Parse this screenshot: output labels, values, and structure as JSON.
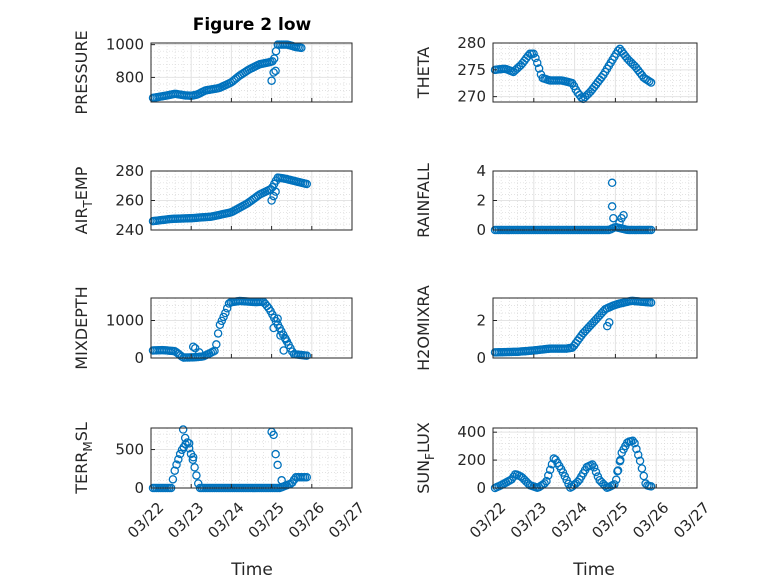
{
  "figure": {
    "title": "Figure 2 low",
    "xlabel": "Time",
    "marker_color": "#0072BD",
    "date_ticks": [
      "03/22",
      "03/23",
      "03/24",
      "03/25",
      "03/26",
      "03/27"
    ]
  },
  "chart_data": [
    {
      "type": "scatter",
      "ylabel": "PRESSURE",
      "ylabel_main": "PRESSURE",
      "ylim": [
        650,
        1010
      ],
      "yticks": [
        800,
        1000
      ],
      "x_range_days": [
        "03/22",
        "03/27"
      ],
      "anchors": [
        [
          0.05,
          675
        ],
        [
          0.4,
          690
        ],
        [
          0.6,
          700
        ],
        [
          0.85,
          690
        ],
        [
          1.0,
          688
        ],
        [
          1.15,
          695
        ],
        [
          1.35,
          720
        ],
        [
          1.7,
          735
        ],
        [
          2.0,
          770
        ],
        [
          2.2,
          810
        ],
        [
          2.45,
          850
        ],
        [
          2.7,
          880
        ],
        [
          2.9,
          890
        ],
        [
          3.05,
          900
        ],
        [
          3.15,
          1000
        ],
        [
          3.4,
          1000
        ],
        [
          3.6,
          985
        ],
        [
          3.75,
          980
        ]
      ],
      "extras": [
        [
          3.0,
          780
        ],
        [
          3.05,
          830
        ],
        [
          3.1,
          840
        ]
      ],
      "y_gridlines": true
    },
    {
      "type": "scatter",
      "ylabel": "THETA",
      "ylabel_main": "THETA",
      "ylim": [
        269,
        280
      ],
      "yticks": [
        270,
        275,
        280
      ],
      "anchors": [
        [
          0.05,
          275
        ],
        [
          0.3,
          275.2
        ],
        [
          0.5,
          274.6
        ],
        [
          0.7,
          276
        ],
        [
          0.9,
          278
        ],
        [
          1.0,
          278
        ],
        [
          1.1,
          276
        ],
        [
          1.2,
          273.5
        ],
        [
          1.4,
          273
        ],
        [
          1.7,
          273
        ],
        [
          1.95,
          272.5
        ],
        [
          2.05,
          271
        ],
        [
          2.2,
          269.5
        ],
        [
          2.4,
          271
        ],
        [
          2.7,
          274
        ],
        [
          2.9,
          276.5
        ],
        [
          3.1,
          279
        ],
        [
          3.3,
          277
        ],
        [
          3.5,
          275.5
        ],
        [
          3.7,
          273.5
        ],
        [
          3.9,
          272.5
        ]
      ],
      "extras": [],
      "y_gridlines": true
    },
    {
      "type": "scatter",
      "ylabel": "AIR_TEMP",
      "ylabel_main": "AIR",
      "ylabel_sub": "T",
      "ylabel_rest": "EMP",
      "ylim": [
        240,
        280
      ],
      "yticks": [
        240,
        260,
        280
      ],
      "anchors": [
        [
          0.05,
          246
        ],
        [
          0.5,
          247.5
        ],
        [
          1.0,
          248
        ],
        [
          1.5,
          249
        ],
        [
          2.0,
          252
        ],
        [
          2.4,
          258
        ],
        [
          2.7,
          264
        ],
        [
          3.0,
          268
        ],
        [
          3.15,
          275.5
        ],
        [
          3.3,
          275
        ],
        [
          3.6,
          273
        ],
        [
          3.9,
          271
        ]
      ],
      "extras": [
        [
          3.0,
          260
        ],
        [
          3.05,
          263
        ],
        [
          3.1,
          266
        ]
      ],
      "y_gridlines": true
    },
    {
      "type": "scatter",
      "ylabel": "RAINFALL",
      "ylabel_main": "RAINFALL",
      "ylim": [
        0,
        4
      ],
      "yticks": [
        0,
        2,
        4
      ],
      "anchors": [
        [
          0.05,
          0
        ],
        [
          2.85,
          0
        ],
        [
          3.0,
          0.2
        ],
        [
          3.3,
          0
        ],
        [
          3.9,
          0
        ]
      ],
      "extras": [
        [
          2.92,
          3.2
        ],
        [
          2.92,
          1.6
        ],
        [
          2.95,
          0.8
        ],
        [
          3.1,
          0.5
        ],
        [
          3.15,
          0.8
        ],
        [
          3.2,
          1.0
        ]
      ],
      "y_gridlines": true
    },
    {
      "type": "scatter",
      "ylabel": "MIXDEPTH",
      "ylabel_main": "MIXDEPTH",
      "ylim": [
        0,
        1600
      ],
      "yticks": [
        0,
        1000
      ],
      "anchors": [
        [
          0.05,
          200
        ],
        [
          0.3,
          210
        ],
        [
          0.6,
          180
        ],
        [
          0.8,
          10
        ],
        [
          1.1,
          20
        ],
        [
          1.3,
          40
        ],
        [
          1.45,
          120
        ],
        [
          1.6,
          200
        ],
        [
          1.7,
          850
        ],
        [
          1.85,
          1200
        ],
        [
          1.95,
          1480
        ],
        [
          2.2,
          1520
        ],
        [
          2.6,
          1490
        ],
        [
          2.8,
          1500
        ],
        [
          2.95,
          1300
        ],
        [
          3.1,
          1000
        ],
        [
          3.25,
          700
        ],
        [
          3.4,
          400
        ],
        [
          3.55,
          100
        ],
        [
          3.9,
          60
        ]
      ],
      "extras": [
        [
          1.05,
          300
        ],
        [
          1.1,
          260
        ],
        [
          1.2,
          150
        ],
        [
          3.05,
          800
        ],
        [
          3.15,
          1050
        ],
        [
          3.22,
          600
        ],
        [
          3.3,
          200
        ],
        [
          3.35,
          500
        ]
      ],
      "y_gridlines": true
    },
    {
      "type": "scatter",
      "ylabel": "H2OMIXRA",
      "ylabel_main": "H2OMIXRA",
      "ylim": [
        0,
        3.2
      ],
      "yticks": [
        0,
        2
      ],
      "anchors": [
        [
          0.05,
          0.3
        ],
        [
          0.6,
          0.33
        ],
        [
          1.0,
          0.4
        ],
        [
          1.4,
          0.5
        ],
        [
          1.8,
          0.5
        ],
        [
          1.95,
          0.55
        ],
        [
          2.2,
          1.3
        ],
        [
          2.5,
          2.0
        ],
        [
          2.75,
          2.6
        ],
        [
          2.95,
          2.8
        ],
        [
          3.1,
          2.9
        ],
        [
          3.4,
          3.05
        ],
        [
          3.9,
          2.95
        ]
      ],
      "extras": [
        [
          2.8,
          1.7
        ],
        [
          2.85,
          1.9
        ]
      ],
      "y_gridlines": true
    },
    {
      "type": "scatter",
      "ylabel": "TERR_MSL",
      "ylabel_main": "TERR",
      "ylabel_sub": "M",
      "ylabel_rest": "SL",
      "ylim": [
        0,
        780
      ],
      "yticks": [
        0,
        500
      ],
      "anchors": [
        [
          0.05,
          0
        ],
        [
          0.3,
          0
        ],
        [
          0.5,
          0
        ],
        [
          0.6,
          250
        ],
        [
          0.75,
          480
        ],
        [
          0.9,
          600
        ],
        [
          1.05,
          350
        ],
        [
          1.2,
          0
        ],
        [
          1.6,
          0
        ],
        [
          2.0,
          0
        ],
        [
          2.5,
          0
        ],
        [
          2.95,
          0
        ],
        [
          3.2,
          0
        ],
        [
          3.5,
          60
        ],
        [
          3.6,
          140
        ],
        [
          3.9,
          140
        ]
      ],
      "extras": [
        [
          0.8,
          760
        ],
        [
          0.85,
          650
        ],
        [
          0.95,
          580
        ],
        [
          1.05,
          400
        ],
        [
          3.0,
          730
        ],
        [
          3.05,
          690
        ],
        [
          3.1,
          440
        ],
        [
          3.15,
          300
        ],
        [
          3.25,
          100
        ]
      ],
      "y_gridlines": true
    },
    {
      "type": "scatter",
      "ylabel": "SUN_FLUX",
      "ylabel_main": "SUN",
      "ylabel_sub": "F",
      "ylabel_rest": "LUX",
      "ylim": [
        0,
        430
      ],
      "yticks": [
        0,
        200,
        400
      ],
      "anchors": [
        [
          0.05,
          0
        ],
        [
          0.2,
          20
        ],
        [
          0.45,
          60
        ],
        [
          0.55,
          100
        ],
        [
          0.7,
          80
        ],
        [
          0.9,
          20
        ],
        [
          1.1,
          0
        ],
        [
          1.3,
          40
        ],
        [
          1.5,
          220
        ],
        [
          1.7,
          120
        ],
        [
          1.9,
          0
        ],
        [
          2.1,
          50
        ],
        [
          2.3,
          150
        ],
        [
          2.45,
          170
        ],
        [
          2.6,
          60
        ],
        [
          2.8,
          0
        ],
        [
          3.0,
          30
        ],
        [
          3.15,
          250
        ],
        [
          3.3,
          330
        ],
        [
          3.45,
          340
        ],
        [
          3.6,
          200
        ],
        [
          3.75,
          20
        ],
        [
          3.9,
          10
        ]
      ],
      "extras": [
        [
          3.05,
          120
        ],
        [
          3.12,
          200
        ]
      ],
      "y_gridlines": true
    }
  ]
}
